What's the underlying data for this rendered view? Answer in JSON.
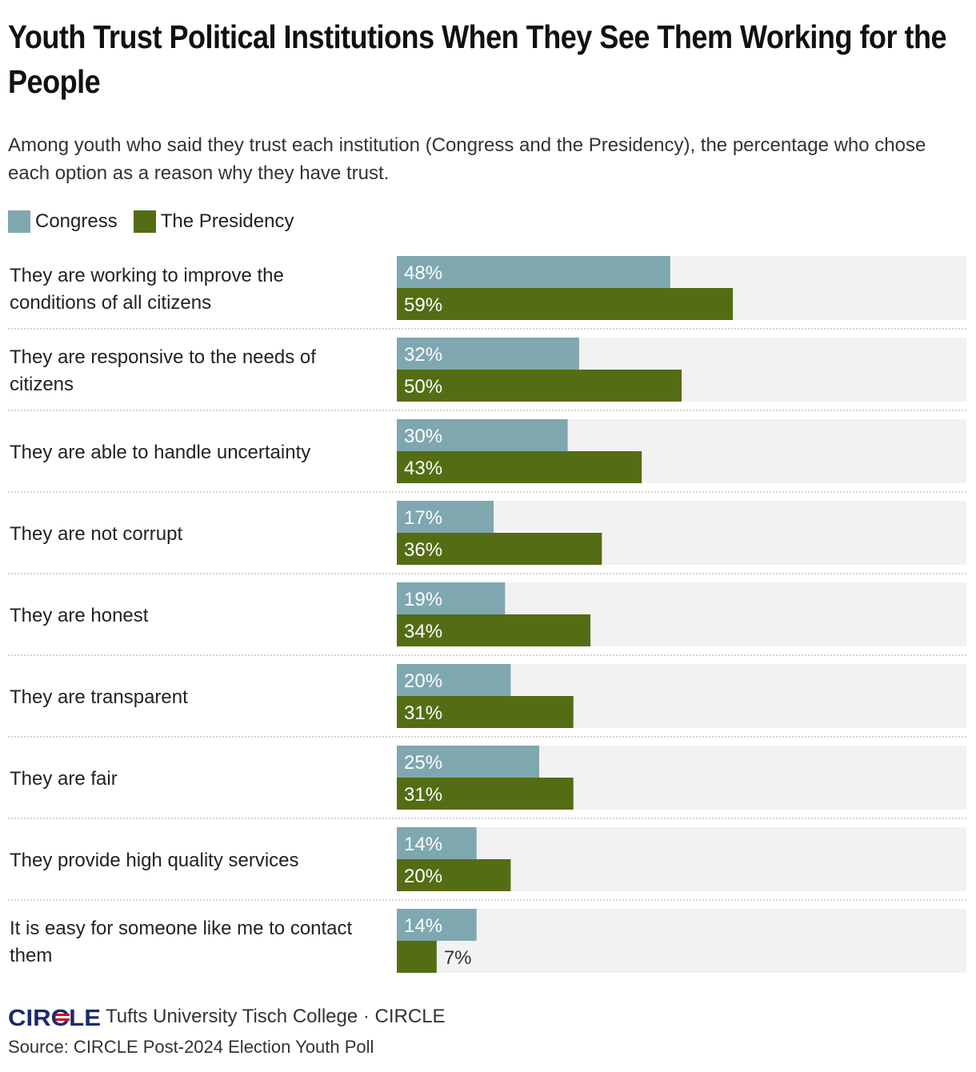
{
  "title": "Youth Trust Political Institutions When They See Them Working for the People",
  "subtitle": "Among youth who said they trust each institution (Congress and the Presidency), the percentage who chose each option as a reason why they have trust.",
  "legend": [
    {
      "name": "Congress",
      "color": "#7fa7b0"
    },
    {
      "name": "The Presidency",
      "color": "#546d14"
    }
  ],
  "footer": {
    "logo_text": "CIRCLE",
    "org": "Tufts University Tisch College · CIRCLE",
    "source": "Source: CIRCLE Post-2024 Election Youth Poll"
  },
  "colors": {
    "congress": "#7fa7b0",
    "presidency": "#546d14",
    "track": "#f2f2f2",
    "logo_blue": "#1c2a6b",
    "logo_red": "#c8102e"
  },
  "chart_data": {
    "type": "bar",
    "orientation": "horizontal",
    "title": "Youth Trust Political Institutions When They See Them Working for the People",
    "xlim": [
      0,
      100
    ],
    "unit": "%",
    "categories": [
      [
        "They are working to improve the",
        "conditions of all citizens"
      ],
      [
        "They are responsive to the needs of",
        "citizens"
      ],
      [
        "They are able to handle uncertainty"
      ],
      [
        "They are not corrupt"
      ],
      [
        "They are honest"
      ],
      [
        "They are transparent"
      ],
      [
        "They are fair"
      ],
      [
        "They provide high quality services"
      ],
      [
        "It is easy for someone like me to contact",
        "them"
      ]
    ],
    "series": [
      {
        "name": "Congress",
        "values": [
          48,
          32,
          30,
          17,
          19,
          20,
          25,
          14,
          14
        ]
      },
      {
        "name": "The Presidency",
        "values": [
          59,
          50,
          43,
          36,
          34,
          31,
          31,
          20,
          7
        ]
      }
    ]
  }
}
